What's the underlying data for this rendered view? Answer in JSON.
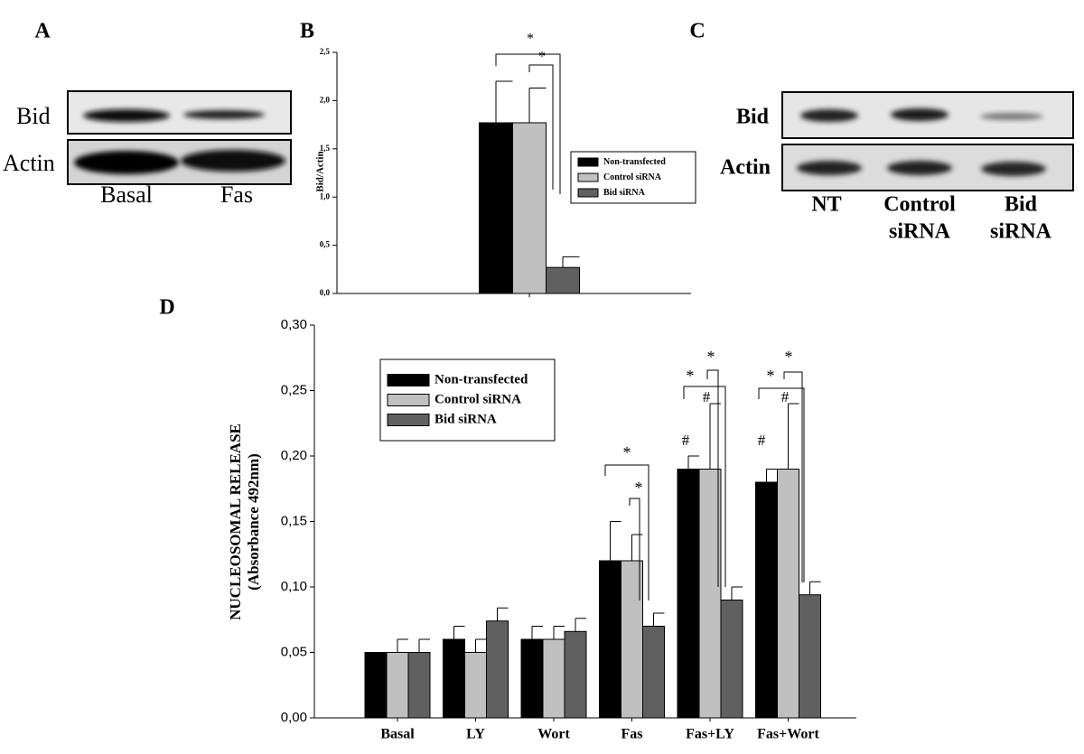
{
  "panel_labels": [
    "A",
    "B",
    "C",
    "D"
  ],
  "blot_a": {
    "rows": [
      "Bid",
      "Actin"
    ],
    "lanes": [
      "Basal",
      "Fas"
    ]
  },
  "blot_c": {
    "rows": [
      "Bid",
      "Actin"
    ],
    "lanes": [
      [
        "NT"
      ],
      [
        "Control",
        "siRNA"
      ],
      [
        "Bid",
        "siRNA"
      ]
    ]
  },
  "chart_data": [
    {
      "type": "bar",
      "y_label": "Bid/Actin",
      "categories": [
        null
      ],
      "series": [
        {
          "name": "Non-transfected",
          "color": "#000000",
          "values": [
            1.77
          ],
          "errors": [
            0.43
          ]
        },
        {
          "name": "Control siRNA",
          "color": "#c0c0c0",
          "values": [
            1.77
          ],
          "errors": [
            0.36
          ]
        },
        {
          "name": "Bid siRNA",
          "color": "#606060",
          "values": [
            0.27
          ],
          "errors": [
            0.11
          ]
        }
      ],
      "ylim": [
        0,
        2.5
      ],
      "yticks": [
        {
          "value": 0,
          "label": "0,0"
        },
        {
          "value": 0.5,
          "label": "0,5"
        },
        {
          "value": 1,
          "label": "1,0"
        },
        {
          "value": 1.5,
          "label": "1,5"
        },
        {
          "value": 2,
          "label": "2,0"
        },
        {
          "value": 2.5,
          "label": "2,5"
        }
      ],
      "legend": "right",
      "annotations": [
        "*",
        "*"
      ]
    },
    {
      "type": "bar",
      "y_label": [
        "NUCLEOSOMAL RELEASE",
        "(Absorbance 492nm)"
      ],
      "categories": [
        "Basal",
        "LY",
        "Wort",
        "Fas",
        "Fas+LY",
        "Fas+Wort"
      ],
      "series": [
        {
          "name": "Non-transfected",
          "color": "#000000",
          "values": [
            0.05,
            0.06,
            0.06,
            0.12,
            0.19,
            0.18
          ],
          "errors": [
            0,
            0.01,
            0.01,
            0.03,
            0.01,
            0.01
          ]
        },
        {
          "name": "Control siRNA",
          "color": "#c0c0c0",
          "values": [
            0.05,
            0.05,
            0.06,
            0.12,
            0.19,
            0.19
          ],
          "errors": [
            0.01,
            0.01,
            0.01,
            0.02,
            0.05,
            0.05
          ]
        },
        {
          "name": "Bid siRNA",
          "color": "#606060",
          "values": [
            0.05,
            0.074,
            0.066,
            0.07,
            0.09,
            0.094
          ],
          "errors": [
            0.01,
            0.01,
            0.01,
            0.01,
            0.01,
            0.01
          ]
        }
      ],
      "ylim": [
        0,
        0.3
      ],
      "yticks": [
        {
          "value": 0,
          "label": "0,00"
        },
        {
          "value": 0.05,
          "label": "0,05"
        },
        {
          "value": 0.1,
          "label": "0,10"
        },
        {
          "value": 0.15,
          "label": "0,15"
        },
        {
          "value": 0.2,
          "label": "0,20"
        },
        {
          "value": 0.25,
          "label": "0,25"
        },
        {
          "value": 0.3,
          "label": "0,30"
        }
      ],
      "legend": "upper left",
      "annotations": [
        "*",
        "*",
        "*",
        "*",
        "*",
        "*",
        "#",
        "#",
        "#",
        "#"
      ]
    }
  ]
}
